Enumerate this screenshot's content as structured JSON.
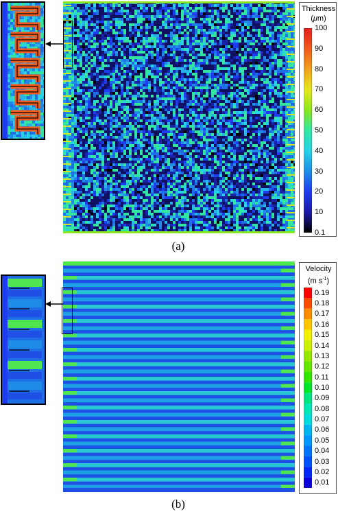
{
  "panel_a": {
    "caption": "(a)",
    "legend": {
      "title": "Thickness",
      "unit_mu": "μ",
      "unit_m": "m",
      "ticks": [
        "100",
        "90",
        "80",
        "70",
        "60",
        "50",
        "40",
        "30",
        "20",
        "10",
        "0.1"
      ],
      "colors": [
        "#000000",
        "#1a1aa8",
        "#1e3cf0",
        "#1e8ce6",
        "#28d2e6",
        "#32e6a0",
        "#8ce61e",
        "#e6e61e",
        "#f0a01e",
        "#f05a1e",
        "#e61e1e"
      ]
    }
  },
  "panel_b": {
    "caption": "(b)",
    "legend": {
      "title": "Velocity",
      "unit_base": "(m s",
      "unit_sup": "-1",
      "unit_close": ")",
      "ticks": [
        "0.19",
        "0.18",
        "0.17",
        "0.16",
        "0.15",
        "0.14",
        "0.13",
        "0.12",
        "0.11",
        "0.10",
        "0.09",
        "0.08",
        "0.07",
        "0.06",
        "0.05",
        "0.04",
        "0.03",
        "0.02",
        "0.01"
      ],
      "colors": [
        "#ff0000",
        "#ff4a00",
        "#ff8c00",
        "#ffc400",
        "#f0f000",
        "#c8f000",
        "#96e600",
        "#64e600",
        "#32e600",
        "#00e62a",
        "#00e682",
        "#00e6b4",
        "#00dcdc",
        "#00b4f0",
        "#0096ff",
        "#0073ff",
        "#0050ff",
        "#0028f5",
        "#0a00dc"
      ]
    }
  }
}
